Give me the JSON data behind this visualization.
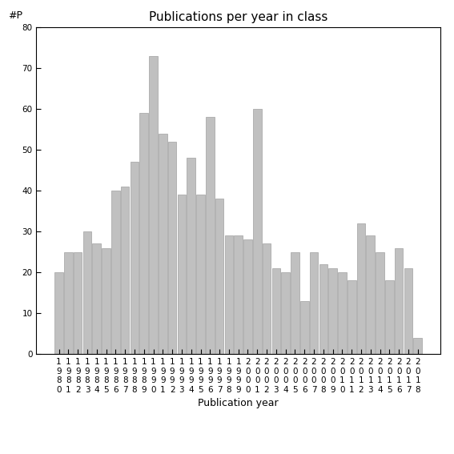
{
  "title": "Publications per year in class",
  "xlabel": "Publication year",
  "ylabel": "#P",
  "bar_color": "#c0c0c0",
  "bar_edgecolor": "#a0a0a0",
  "ylim": [
    0,
    80
  ],
  "yticks": [
    0,
    10,
    20,
    30,
    40,
    50,
    60,
    70,
    80
  ],
  "years_use": [
    1980,
    1981,
    1982,
    1983,
    1984,
    1985,
    1986,
    1987,
    1988,
    1989,
    1990,
    1991,
    1992,
    1993,
    1994,
    1995,
    1996,
    1997,
    1998,
    1999,
    2000,
    2001,
    2002,
    2003,
    2004,
    2005,
    2006,
    2007,
    2008,
    2009,
    2010,
    2011,
    2012,
    2013,
    2014,
    2015,
    2016,
    2017,
    2018
  ],
  "vals_use": [
    20,
    25,
    25,
    30,
    27,
    26,
    40,
    41,
    47,
    59,
    73,
    54,
    52,
    39,
    48,
    39,
    58,
    38,
    29,
    29,
    28,
    60,
    27,
    21,
    20,
    25,
    13,
    25,
    22,
    21,
    20,
    18,
    32,
    29,
    25,
    18,
    26,
    21,
    4
  ],
  "background_color": "#ffffff",
  "title_fontsize": 11,
  "axis_label_fontsize": 9,
  "tick_fontsize": 7.5
}
